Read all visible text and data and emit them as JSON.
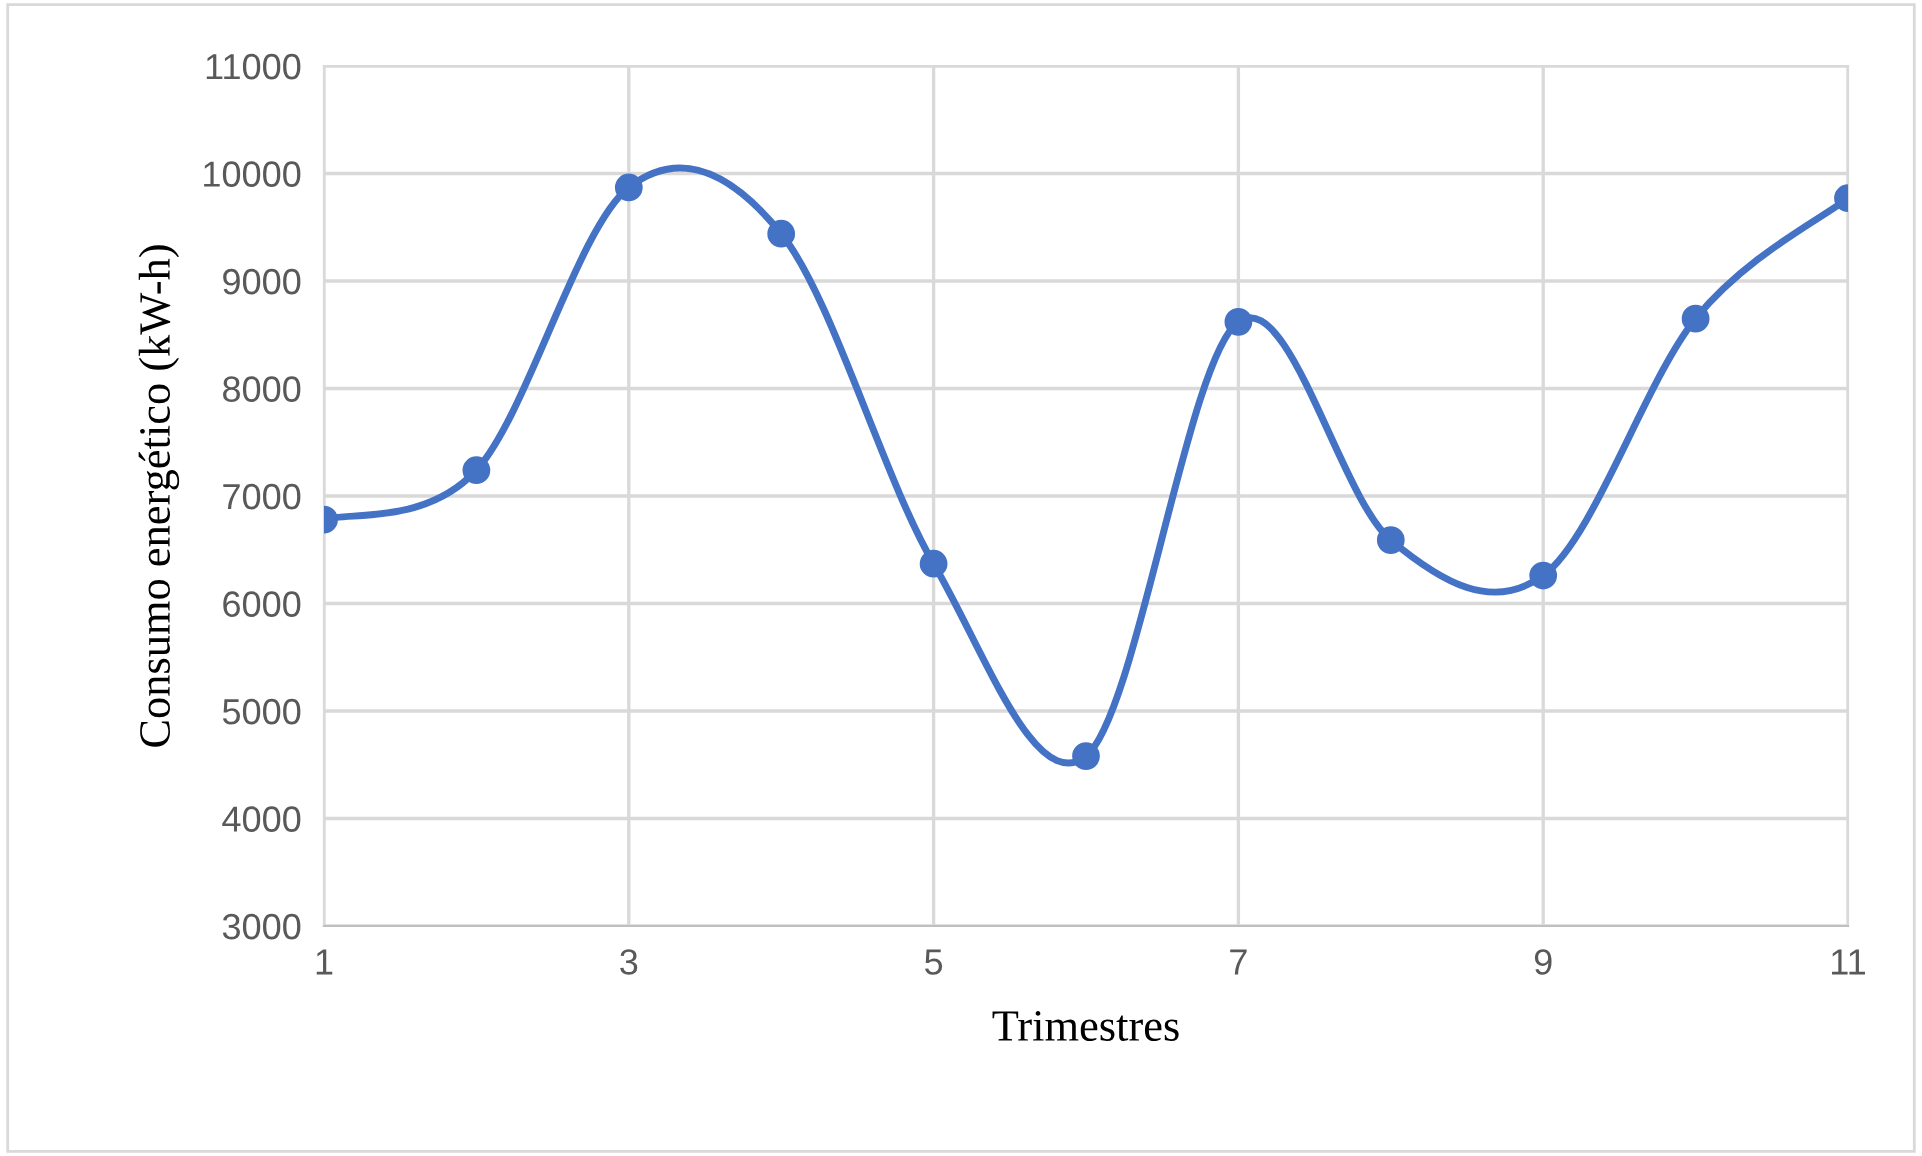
{
  "chart_data": {
    "type": "line",
    "xlabel": "Trimestres",
    "ylabel": "Consumo energético (kW-h)",
    "x": [
      1,
      2,
      3,
      4,
      5,
      6,
      7,
      8,
      9,
      10,
      11
    ],
    "series": [
      {
        "color": "#4472c4",
        "values": [
          6780,
          7240,
          9870,
          9440,
          6370,
          4580,
          8620,
          6590,
          6260,
          8650,
          9770
        ]
      }
    ],
    "xlim": [
      1,
      11
    ],
    "xticks": [
      1,
      3,
      5,
      7,
      9,
      11
    ],
    "ylim": [
      3000,
      11000
    ],
    "yticks": [
      3000,
      4000,
      5000,
      6000,
      7000,
      8000,
      9000,
      10000,
      11000
    ],
    "grid": true,
    "marker": "circle",
    "line_style": "solid"
  }
}
